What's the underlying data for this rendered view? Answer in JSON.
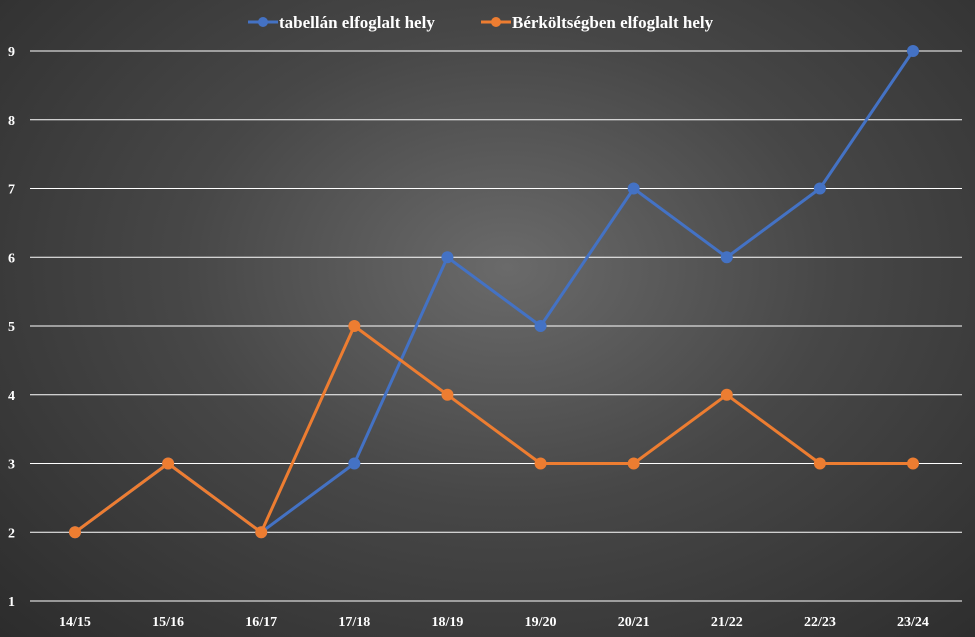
{
  "chart_data": {
    "type": "line",
    "categories": [
      "14/15",
      "15/16",
      "16/17",
      "17/18",
      "18/19",
      "19/20",
      "20/21",
      "21/22",
      "22/23",
      "23/24"
    ],
    "series": [
      {
        "name": "tabellán elfoglalt hely",
        "color": "#4472c4",
        "values": [
          2,
          3,
          2,
          3,
          6,
          5,
          7,
          6,
          7,
          9
        ]
      },
      {
        "name": "Bérköltségben elfoglalt hely",
        "color": "#ed7d31",
        "values": [
          2,
          3,
          2,
          5,
          4,
          3,
          3,
          4,
          3,
          3
        ]
      }
    ],
    "ylim": [
      1,
      9
    ],
    "yticks": [
      1,
      2,
      3,
      4,
      5,
      6,
      7,
      8,
      9
    ],
    "grid": true,
    "gridColor": "#ffffff",
    "legend": "top-center",
    "title": "",
    "xlabel": "",
    "ylabel": ""
  }
}
